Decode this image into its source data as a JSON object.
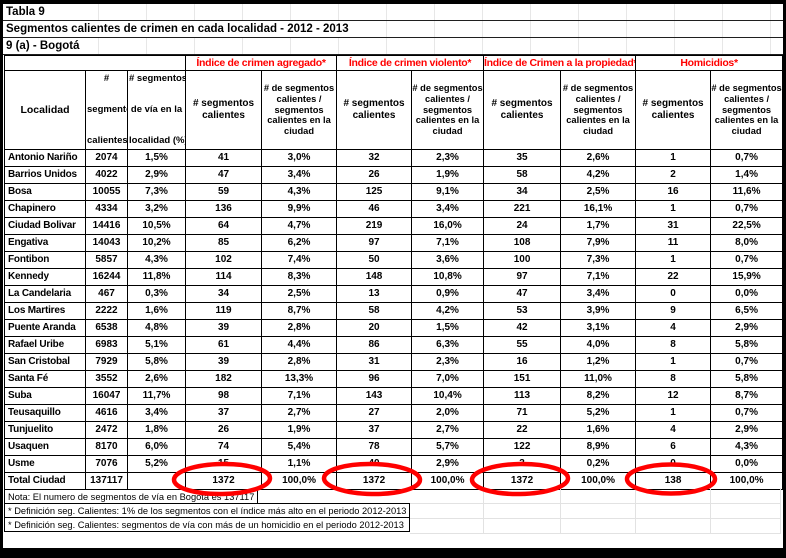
{
  "titles": [
    "Tabla 9",
    "Segmentos calientes de crimen en cada localidad - 2012 - 2013",
    "9 (a) - Bogotá"
  ],
  "group_headers": [
    "Índice de crimen agregado*",
    "Índice de crimen violento*",
    "Índice de Crimen a la propiedad*",
    "Homicidios*"
  ],
  "column_headers": {
    "localidad": "Localidad",
    "segmentos_lines": [
      "#",
      "segmentos",
      "calientes"
    ],
    "via_lines": [
      "# segmentos",
      "de vía en la",
      "localidad (%)"
    ],
    "count_label": "# segmentos\ncalientes",
    "share_label": "# de segmentos\ncalientes /\nsegmentos\ncalientes en la\nciudad"
  },
  "rows": [
    [
      "Antonio Nariño",
      "2074",
      "1,5%",
      "41",
      "3,0%",
      "32",
      "2,3%",
      "35",
      "2,6%",
      "1",
      "0,7%"
    ],
    [
      "Barrios Unidos",
      "4022",
      "2,9%",
      "47",
      "3,4%",
      "26",
      "1,9%",
      "58",
      "4,2%",
      "2",
      "1,4%"
    ],
    [
      "Bosa",
      "10055",
      "7,3%",
      "59",
      "4,3%",
      "125",
      "9,1%",
      "34",
      "2,5%",
      "16",
      "11,6%"
    ],
    [
      "Chapinero",
      "4334",
      "3,2%",
      "136",
      "9,9%",
      "46",
      "3,4%",
      "221",
      "16,1%",
      "1",
      "0,7%"
    ],
    [
      "Ciudad Bolivar",
      "14416",
      "10,5%",
      "64",
      "4,7%",
      "219",
      "16,0%",
      "24",
      "1,7%",
      "31",
      "22,5%"
    ],
    [
      "Engativa",
      "14043",
      "10,2%",
      "85",
      "6,2%",
      "97",
      "7,1%",
      "108",
      "7,9%",
      "11",
      "8,0%"
    ],
    [
      "Fontibon",
      "5857",
      "4,3%",
      "102",
      "7,4%",
      "50",
      "3,6%",
      "100",
      "7,3%",
      "1",
      "0,7%"
    ],
    [
      "Kennedy",
      "16244",
      "11,8%",
      "114",
      "8,3%",
      "148",
      "10,8%",
      "97",
      "7,1%",
      "22",
      "15,9%"
    ],
    [
      "La Candelaria",
      "467",
      "0,3%",
      "34",
      "2,5%",
      "13",
      "0,9%",
      "47",
      "3,4%",
      "0",
      "0,0%"
    ],
    [
      "Los Martires",
      "2222",
      "1,6%",
      "119",
      "8,7%",
      "58",
      "4,2%",
      "53",
      "3,9%",
      "9",
      "6,5%"
    ],
    [
      "Puente Aranda",
      "6538",
      "4,8%",
      "39",
      "2,8%",
      "20",
      "1,5%",
      "42",
      "3,1%",
      "4",
      "2,9%"
    ],
    [
      "Rafael Uribe",
      "6983",
      "5,1%",
      "61",
      "4,4%",
      "86",
      "6,3%",
      "55",
      "4,0%",
      "8",
      "5,8%"
    ],
    [
      "San Cristobal",
      "7929",
      "5,8%",
      "39",
      "2,8%",
      "31",
      "2,3%",
      "16",
      "1,2%",
      "1",
      "0,7%"
    ],
    [
      "Santa Fé",
      "3552",
      "2,6%",
      "182",
      "13,3%",
      "96",
      "7,0%",
      "151",
      "11,0%",
      "8",
      "5,8%"
    ],
    [
      "Suba",
      "16047",
      "11,7%",
      "98",
      "7,1%",
      "143",
      "10,4%",
      "113",
      "8,2%",
      "12",
      "8,7%"
    ],
    [
      "Teusaquillo",
      "4616",
      "3,4%",
      "37",
      "2,7%",
      "27",
      "2,0%",
      "71",
      "5,2%",
      "1",
      "0,7%"
    ],
    [
      "Tunjuelito",
      "2472",
      "1,8%",
      "26",
      "1,9%",
      "37",
      "2,7%",
      "22",
      "1,6%",
      "4",
      "2,9%"
    ],
    [
      "Usaquen",
      "8170",
      "6,0%",
      "74",
      "5,4%",
      "78",
      "5,7%",
      "122",
      "8,9%",
      "6",
      "4,3%"
    ],
    [
      "Usme",
      "7076",
      "5,2%",
      "15",
      "1,1%",
      "40",
      "2,9%",
      "3",
      "0,2%",
      "0",
      "0,0%"
    ]
  ],
  "total_row": [
    "Total Ciudad",
    "137117",
    "",
    "1372",
    "100,0%",
    "1372",
    "100,0%",
    "1372",
    "100,0%",
    "138",
    "100,0%"
  ],
  "footnotes": [
    "Nota: El numero de segmentos de vía en Bogotá es 137117",
    "* Definición seg. Calientes: 1% de los segmentos con el índice más alto en el periodo 2012-2013",
    "* Definición seg. Calientes: segmentos de vía con más de un homicidio en el periodo 2012-2013"
  ],
  "annotations": {
    "circled_values": [
      "1372",
      "1372",
      "1372",
      "138"
    ]
  },
  "colors": {
    "accent_red": "#FF0000",
    "grid_black": "#000000",
    "grid_faint": "#E2E2E2"
  }
}
